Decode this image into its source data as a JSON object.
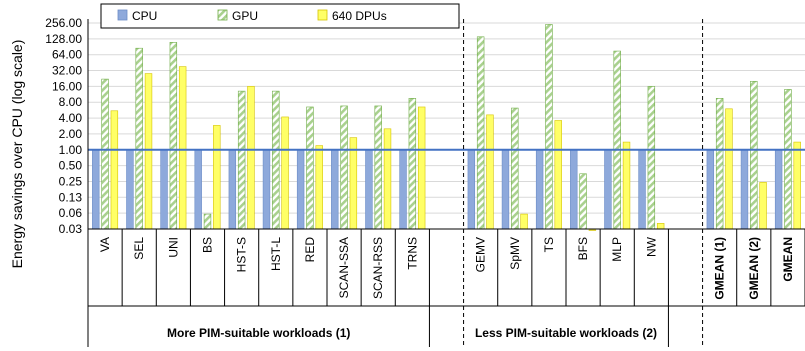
{
  "chart_data": {
    "type": "bar",
    "ylabel": "Energy savings over CPU (log scale)",
    "yscale": "log2",
    "ylim": [
      0.03,
      256
    ],
    "yticks": [
      "256.00",
      "128.00",
      "64.00",
      "32.00",
      "16.00",
      "8.00",
      "4.00",
      "2.00",
      "1.00",
      "0.50",
      "0.25",
      "0.13",
      "0.06",
      "0.03"
    ],
    "ytick_values": [
      256,
      128,
      64,
      32,
      16,
      8,
      4,
      2,
      1,
      0.5,
      0.25,
      0.125,
      0.0625,
      0.03125
    ],
    "grid": true,
    "legend_placement": "top-left",
    "categories": [
      "VA",
      "SEL",
      "UNI",
      "BS",
      "HST-S",
      "HST-L",
      "RED",
      "SCAN-SSA",
      "SCAN-RSS",
      "TRNS",
      "",
      "GEMV",
      "SpMV",
      "TS",
      "BFS",
      "MLP",
      "NW",
      "",
      "GMEAN (1)",
      "GMEAN (2)",
      "GMEAN"
    ],
    "bold_categories": [
      "GMEAN (1)",
      "GMEAN (2)",
      "GMEAN"
    ],
    "series": [
      {
        "name": "CPU",
        "color": "#8ea9db",
        "pattern": "solid",
        "values": [
          1,
          1,
          1,
          1,
          1,
          1,
          1,
          1,
          1,
          1,
          null,
          1,
          1,
          1,
          1,
          1,
          1,
          null,
          1,
          1,
          1
        ]
      },
      {
        "name": "GPU",
        "color": "#a9d18e",
        "pattern": "hatched",
        "values": [
          22,
          85,
          110,
          0.06,
          13,
          13,
          6.5,
          6.8,
          6.8,
          9.5,
          null,
          140,
          6.2,
          240,
          0.35,
          75,
          16,
          null,
          9.5,
          20,
          14
        ]
      },
      {
        "name": "640 DPUs",
        "color": "#ffff66",
        "pattern": "solid",
        "values": [
          5.5,
          28,
          38,
          2.9,
          16,
          4.2,
          1.2,
          1.7,
          2.5,
          6.5,
          null,
          4.6,
          0.06,
          3.6,
          0.03,
          1.4,
          0.04,
          null,
          6,
          0.24,
          1.4
        ]
      }
    ],
    "groups": [
      {
        "label": "More PIM-suitable workloads (1)"
      },
      {
        "label": "Less PIM-suitable workloads (2)"
      }
    ],
    "reference_line": {
      "value": 1,
      "color": "#4472c4"
    }
  }
}
